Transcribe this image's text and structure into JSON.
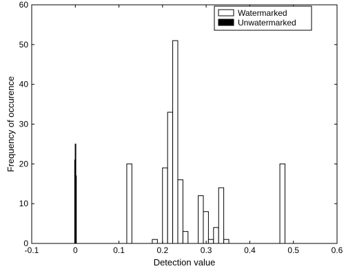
{
  "chart_data": {
    "type": "bar",
    "title": "",
    "xlabel": "Detection value",
    "ylabel": "Frequency of occurence",
    "xlim": [
      -0.1,
      0.6
    ],
    "ylim": [
      0,
      60
    ],
    "x_ticks": [
      -0.1,
      0,
      0.1,
      0.2,
      0.3,
      0.4,
      0.5,
      0.6
    ],
    "x_tick_labels": [
      "-0.1",
      "0",
      "0.1",
      "0.2",
      "0.3",
      "0.4",
      "0.5",
      "0.6"
    ],
    "y_ticks": [
      0,
      10,
      20,
      30,
      40,
      50,
      60
    ],
    "y_tick_labels": [
      "0",
      "10",
      "20",
      "30",
      "40",
      "50",
      "60"
    ],
    "grid": false,
    "legend_position": "top-right",
    "series": [
      {
        "name": "Watermarked",
        "color": "#ffffff",
        "edge_color": "#000000",
        "bin_width": 0.0117,
        "x": [
          0.1238,
          0.1823,
          0.2057,
          0.2174,
          0.2291,
          0.2408,
          0.2525,
          0.2876,
          0.2993,
          0.311,
          0.3227,
          0.3344,
          0.3461,
          0.4748
        ],
        "values": [
          20,
          1,
          19,
          33,
          51,
          16,
          3,
          12,
          8,
          1,
          4,
          14,
          1,
          20
        ]
      },
      {
        "name": "Unwatermarked",
        "color": "#000000",
        "edge_color": "#000000",
        "bin_width": 0.0011,
        "x": [
          -0.0009,
          0.0002,
          0.0013
        ],
        "values": [
          21,
          25,
          17
        ]
      }
    ]
  }
}
